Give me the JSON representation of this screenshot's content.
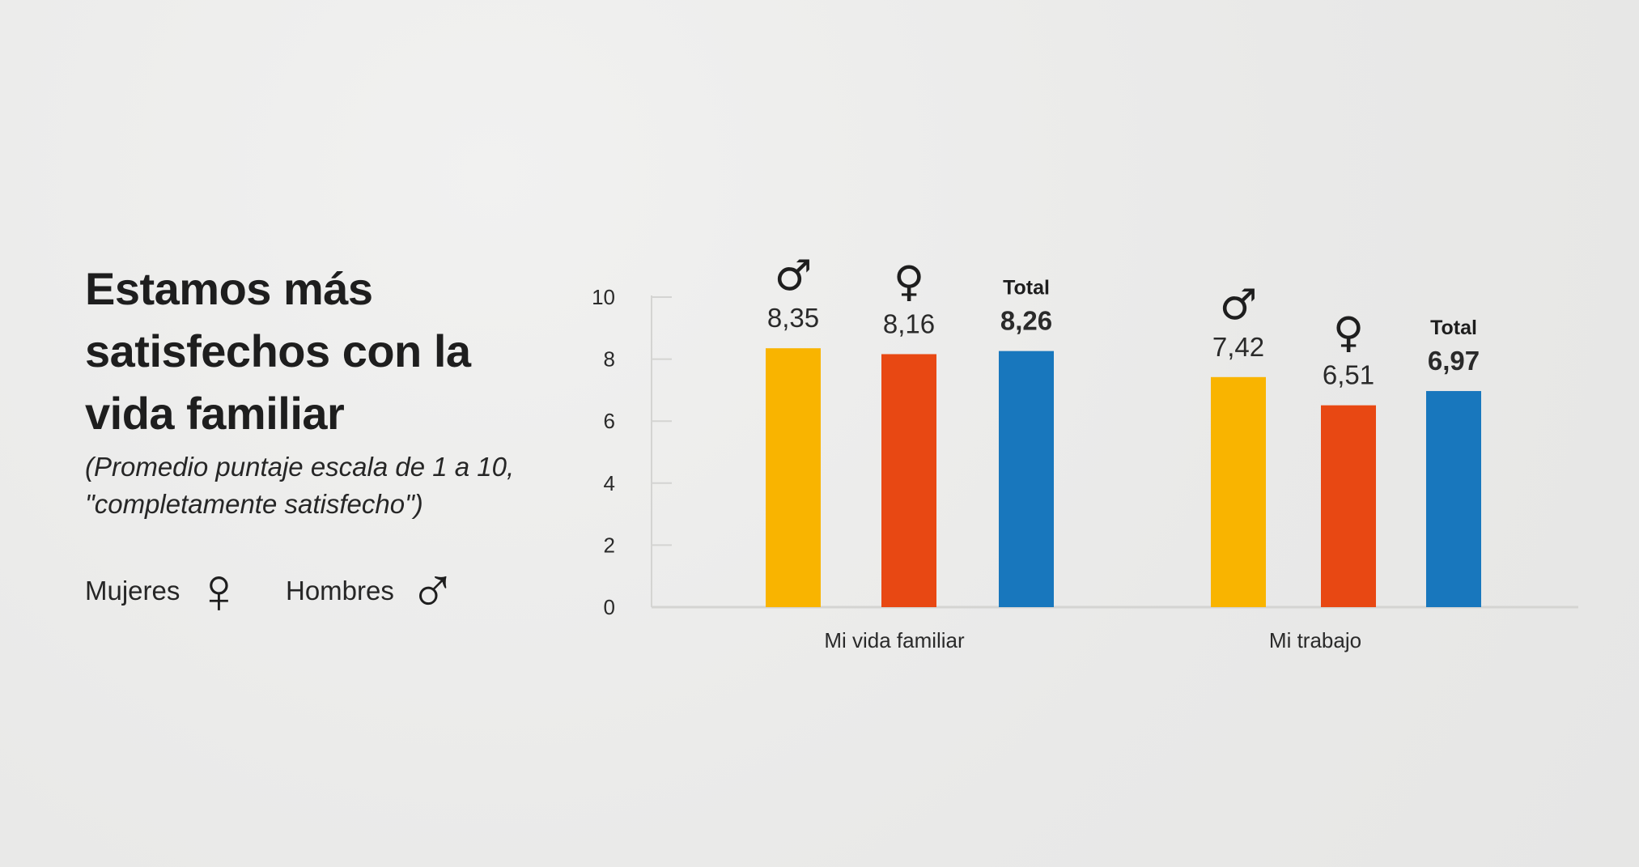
{
  "title": "Estamos más satisfechos con la vida familiar",
  "subtitle": "(Promedio puntaje escala de 1 a 10, \"completamente satisfecho\")",
  "legend": {
    "women_label": "Mujeres",
    "women_symbol": "♀",
    "men_label": "Hombres",
    "men_symbol": "♂"
  },
  "colors": {
    "men": "#f9b400",
    "women": "#e84813",
    "total": "#1877bd",
    "axis": "#d4d4d2"
  },
  "chart_data": {
    "type": "bar",
    "categories": [
      "Mi vida familiar",
      "Mi trabajo"
    ],
    "ylim": [
      0,
      10
    ],
    "yticks": [
      0,
      2,
      4,
      6,
      8,
      10
    ],
    "series": [
      {
        "name": "Hombres",
        "symbol": "♂",
        "values": [
          8.35,
          7.42
        ],
        "labels": [
          "8,35",
          "7,42"
        ]
      },
      {
        "name": "Mujeres",
        "symbol": "♀",
        "values": [
          8.16,
          6.51
        ],
        "labels": [
          "8,16",
          "6,51"
        ]
      },
      {
        "name": "Total",
        "header": "Total",
        "values": [
          8.26,
          6.97
        ],
        "labels": [
          "8,26",
          "6,97"
        ]
      }
    ]
  }
}
